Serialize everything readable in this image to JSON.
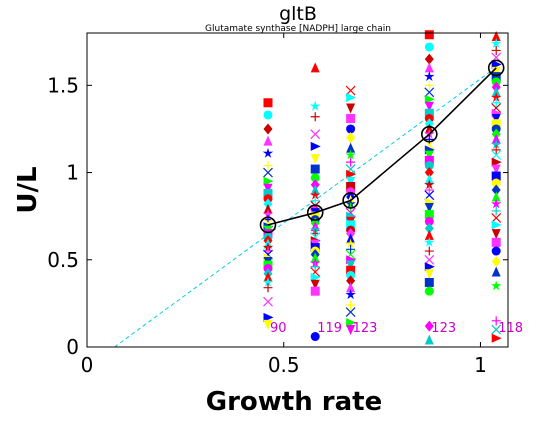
{
  "chart_data": {
    "type": "scatter",
    "title": "gltB",
    "subtitle": "Glutamate synthase [NADPH] large chain",
    "xlabel": "Growth rate",
    "ylabel": "U/L",
    "xlim": [
      0,
      1.07
    ],
    "ylim": [
      0,
      1.8
    ],
    "xticks": [
      0,
      0.5,
      1
    ],
    "xtick_labels": [
      "0",
      "0.5",
      "1"
    ],
    "yticks": [
      0,
      0.5,
      1,
      1.5
    ],
    "ytick_labels": [
      "0",
      "0.5",
      "1",
      "1.5"
    ],
    "grid": false,
    "mean_line": {
      "x": [
        0.46,
        0.58,
        0.67,
        0.87,
        1.04
      ],
      "y": [
        0.7,
        0.77,
        0.84,
        1.22,
        1.6
      ],
      "color": "#000000"
    },
    "fit_line": {
      "x": [
        0.07,
        1.05
      ],
      "y": [
        0.0,
        1.62
      ],
      "color": "#00ccee"
    },
    "count_labels": [
      {
        "x": 0.46,
        "text": "90"
      },
      {
        "x": 0.58,
        "text": "119"
      },
      {
        "x": 0.67,
        "text": "123"
      },
      {
        "x": 0.87,
        "text": "123"
      },
      {
        "x": 1.04,
        "text": "118"
      }
    ],
    "count_label_y": 0.11,
    "count_label_color": "#cc00cc",
    "marker_colors": [
      "#ff0000",
      "#00ff00",
      "#0000ff",
      "#00ffff",
      "#ff00ff",
      "#ffff00",
      "#cc0000",
      "#00cccc",
      "#0033cc",
      "#ff33ff"
    ],
    "series": [
      {
        "x": 0.46,
        "values": [
          1.4,
          1.33,
          1.25,
          1.18,
          1.11,
          1.04,
          1.0,
          0.95,
          0.91,
          0.88,
          0.85,
          0.82,
          0.79,
          0.76,
          0.73,
          0.71,
          0.69,
          0.67,
          0.65,
          0.63,
          0.61,
          0.59,
          0.57,
          0.55,
          0.53,
          0.51,
          0.49,
          0.47,
          0.45,
          0.42,
          0.4,
          0.37,
          0.34,
          0.26,
          0.17,
          0.13
        ]
      },
      {
        "x": 0.58,
        "values": [
          1.6,
          1.38,
          1.32,
          1.22,
          1.15,
          1.08,
          1.02,
          0.97,
          0.93,
          0.9,
          0.87,
          0.84,
          0.81,
          0.79,
          0.77,
          0.75,
          0.73,
          0.71,
          0.69,
          0.67,
          0.65,
          0.63,
          0.61,
          0.59,
          0.57,
          0.55,
          0.53,
          0.51,
          0.48,
          0.46,
          0.43,
          0.4,
          0.36,
          0.32,
          0.06
        ]
      },
      {
        "x": 0.67,
        "values": [
          1.47,
          1.43,
          1.37,
          1.31,
          1.25,
          1.2,
          1.14,
          1.1,
          1.06,
          1.02,
          0.99,
          0.95,
          0.92,
          0.89,
          0.86,
          0.84,
          0.82,
          0.8,
          0.77,
          0.75,
          0.72,
          0.7,
          0.67,
          0.65,
          0.62,
          0.59,
          0.56,
          0.53,
          0.5,
          0.47,
          0.44,
          0.41,
          0.38,
          0.34,
          0.3,
          0.24,
          0.2,
          0.14,
          0.1
        ]
      },
      {
        "x": 0.87,
        "values": [
          1.79,
          1.72,
          1.65,
          1.6,
          1.55,
          1.5,
          1.46,
          1.42,
          1.38,
          1.34,
          1.31,
          1.28,
          1.25,
          1.22,
          1.19,
          1.16,
          1.13,
          1.1,
          1.07,
          1.04,
          1.0,
          0.96,
          0.93,
          0.9,
          0.87,
          0.83,
          0.8,
          0.76,
          0.72,
          0.68,
          0.64,
          0.6,
          0.55,
          0.5,
          0.46,
          0.42,
          0.37,
          0.32,
          0.12,
          0.04
        ]
      },
      {
        "x": 1.04,
        "values": [
          1.78,
          1.74,
          1.7,
          1.66,
          1.62,
          1.58,
          1.55,
          1.52,
          1.49,
          1.46,
          1.43,
          1.4,
          1.37,
          1.34,
          1.31,
          1.28,
          1.25,
          1.22,
          1.19,
          1.16,
          1.13,
          1.1,
          1.06,
          1.02,
          0.98,
          0.94,
          0.9,
          0.86,
          0.82,
          0.78,
          0.74,
          0.7,
          0.65,
          0.6,
          0.55,
          0.49,
          0.43,
          0.35,
          0.15,
          0.1,
          0.05
        ]
      }
    ]
  }
}
